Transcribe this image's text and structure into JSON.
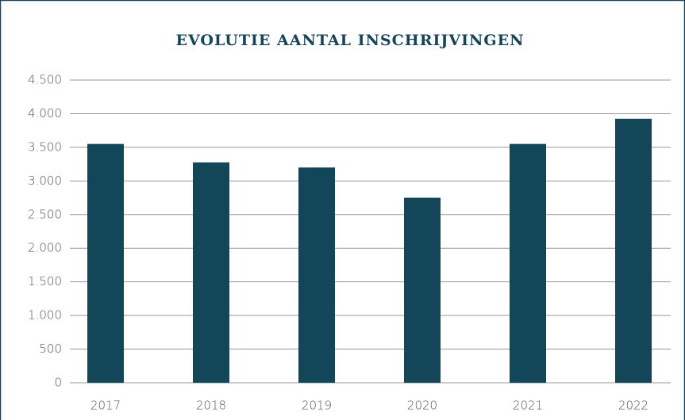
{
  "chart_data": {
    "type": "bar",
    "title": "EVOLUTIE AANTAL INSCHRIJVINGEN",
    "categories": [
      "2017",
      "2018",
      "2019",
      "2020",
      "2021",
      "2022"
    ],
    "values": [
      3550,
      3275,
      3200,
      2750,
      3550,
      3925
    ],
    "color": "#14465a",
    "ylim": [
      0,
      4500
    ],
    "yticks": [
      0,
      500,
      {
        "value": 1000,
        "label": "1.000"
      },
      {
        "value": 1500,
        "label": "1.500"
      },
      {
        "value": 2000,
        "label": "2.000"
      },
      {
        "value": 2500,
        "label": "2.500"
      },
      {
        "value": 3000,
        "label": "3.000"
      },
      {
        "value": 3500,
        "label": "3.500"
      },
      {
        "value": 4000,
        "label": "4.000"
      },
      {
        "value": 4500,
        "label": "4.500"
      }
    ],
    "grid": true
  }
}
